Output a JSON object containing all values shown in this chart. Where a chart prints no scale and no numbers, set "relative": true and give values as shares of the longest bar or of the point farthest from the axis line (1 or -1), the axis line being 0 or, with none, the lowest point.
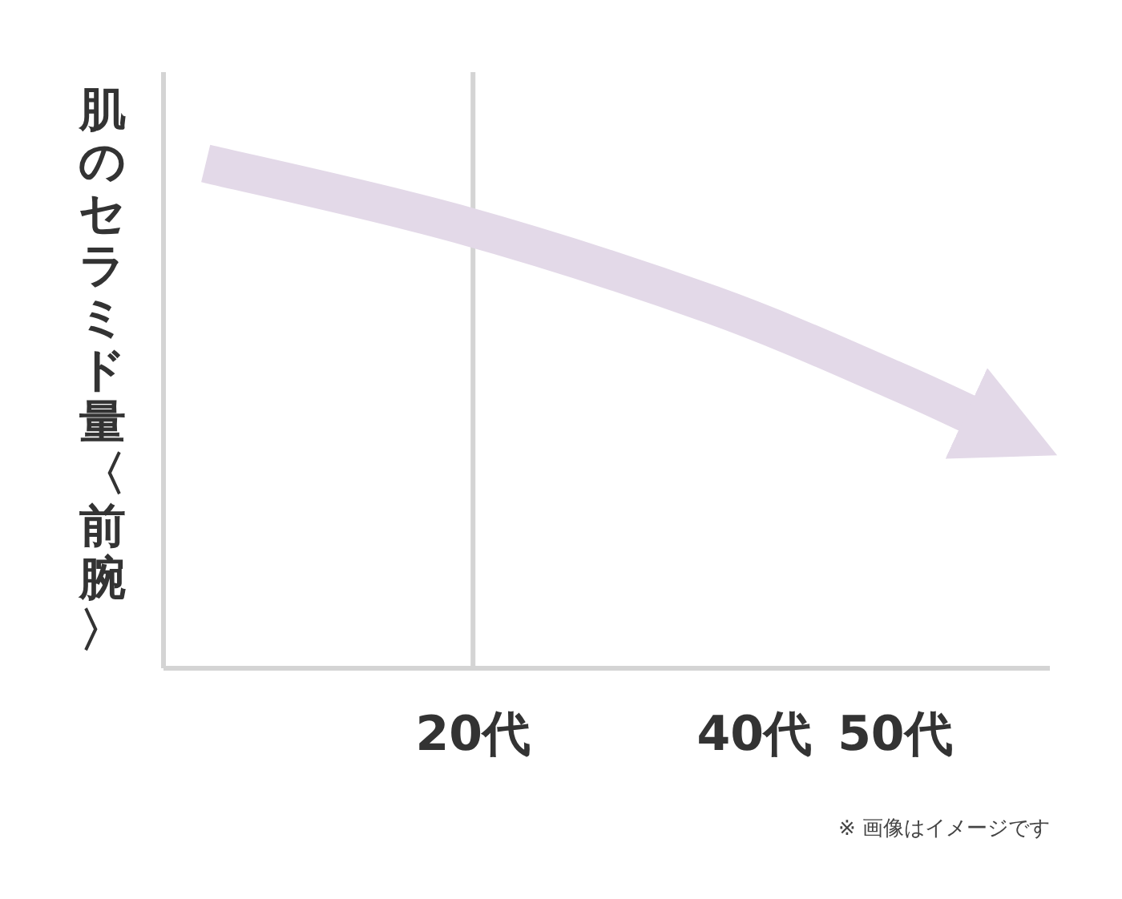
{
  "chart_data": {
    "type": "line",
    "relative": true,
    "ylabel": "肌のセラミド量〈前腕〉",
    "xlim": [
      -2,
      61
    ],
    "xticks": [
      {
        "value": 20,
        "label": "20代"
      },
      {
        "value": 40,
        "label": "40代"
      },
      {
        "value": 50,
        "label": "50代"
      }
    ],
    "series": [
      {
        "color": "#e3d9e8",
        "x": [
          1,
          19,
          37,
          50,
          57
        ],
        "values": [
          1,
          0.88,
          0.72,
          0.57,
          0.48
        ]
      }
    ],
    "ref_lines": [
      {
        "axis": "x",
        "value": 20,
        "color": "#d4d4d4"
      }
    ],
    "annotations": [
      "※ 画像はイメージです"
    ]
  }
}
